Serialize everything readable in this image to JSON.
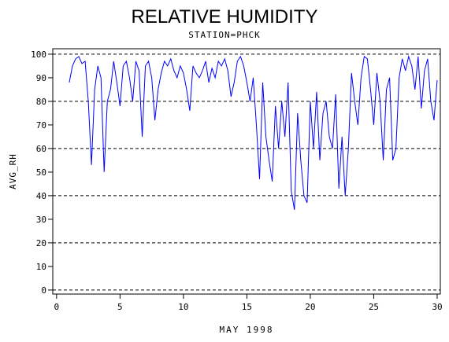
{
  "chart_data": {
    "type": "line",
    "title": "RELATIVE HUMIDITY",
    "subtitle": "STATION=PHCK",
    "x_label": "MAY 1998",
    "y_label": "AVG_RH",
    "x": [
      1,
      1.25,
      1.5,
      1.75,
      2,
      2.25,
      2.5,
      2.75,
      3,
      3.25,
      3.5,
      3.75,
      4,
      4.25,
      4.5,
      4.75,
      5,
      5.25,
      5.5,
      5.75,
      6,
      6.25,
      6.5,
      6.75,
      7,
      7.25,
      7.5,
      7.75,
      8,
      8.25,
      8.5,
      8.75,
      9,
      9.25,
      9.5,
      9.75,
      10,
      10.25,
      10.5,
      10.75,
      11,
      11.25,
      11.5,
      11.75,
      12,
      12.25,
      12.5,
      12.75,
      13,
      13.25,
      13.5,
      13.75,
      14,
      14.25,
      14.5,
      14.75,
      15,
      15.25,
      15.5,
      15.75,
      16,
      16.25,
      16.5,
      16.75,
      17,
      17.25,
      17.5,
      17.75,
      18,
      18.25,
      18.5,
      18.75,
      19,
      19.25,
      19.5,
      19.75,
      20,
      20.25,
      20.5,
      20.75,
      21,
      21.25,
      21.5,
      21.75,
      22,
      22.25,
      22.5,
      22.75,
      23,
      23.25,
      23.5,
      23.75,
      24,
      24.25,
      24.5,
      24.75,
      25,
      25.25,
      25.5,
      25.75,
      26,
      26.25,
      26.5,
      26.75,
      27,
      27.25,
      27.5,
      27.75,
      28,
      28.25,
      28.5,
      28.75,
      29,
      29.25,
      29.5,
      29.75,
      30
    ],
    "series": [
      {
        "name": "AVG_RH",
        "color": "#0000ff",
        "values": [
          88,
          95,
          98,
          99,
          96,
          97,
          80,
          53,
          85,
          95,
          90,
          50,
          80,
          85,
          97,
          88,
          78,
          95,
          97,
          90,
          80,
          97,
          93,
          65,
          95,
          97,
          90,
          72,
          85,
          92,
          97,
          95,
          98,
          93,
          90,
          95,
          92,
          85,
          76,
          95,
          92,
          90,
          93,
          97,
          88,
          94,
          90,
          97,
          95,
          98,
          93,
          82,
          88,
          97,
          99,
          95,
          88,
          80,
          90,
          70,
          47,
          88,
          65,
          55,
          46,
          78,
          60,
          80,
          65,
          88,
          42,
          34,
          75,
          55,
          40,
          37,
          80,
          60,
          84,
          55,
          75,
          80,
          65,
          60,
          83,
          43,
          65,
          40,
          60,
          92,
          80,
          70,
          90,
          99,
          98,
          85,
          70,
          92,
          80,
          55,
          85,
          90,
          55,
          60,
          90,
          98,
          93,
          99,
          95,
          85,
          99,
          77,
          93,
          98,
          80,
          72,
          89
        ]
      }
    ],
    "xlim": [
      -0.3,
      30.25
    ],
    "xticks": [
      0,
      5,
      10,
      15,
      20,
      25,
      30
    ],
    "ylim": [
      -1.7,
      102.3
    ],
    "yticks": [
      0,
      10,
      20,
      30,
      40,
      50,
      60,
      70,
      80,
      90,
      100
    ],
    "grid_lines": [
      0,
      20,
      40,
      60,
      80,
      100
    ]
  }
}
